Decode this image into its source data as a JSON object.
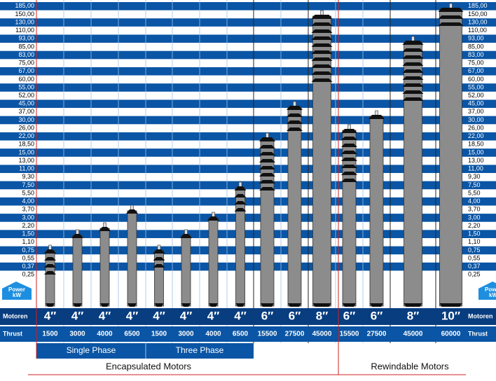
{
  "scale": [
    "185,00",
    "150,00",
    "130,00",
    "110,00",
    "93,00",
    "85,00",
    "83,00",
    "75,00",
    "67,00",
    "60,00",
    "55,00",
    "52,00",
    "45,00",
    "37,00",
    "30,00",
    "26,00",
    "22,00",
    "18,50",
    "15,00",
    "13,00",
    "11,00",
    "9,30",
    "7,50",
    "5,50",
    "4,00",
    "3,70",
    "3,00",
    "2,20",
    "1,50",
    "1,10",
    "0,75",
    "0,55",
    "0,37",
    "0,25"
  ],
  "badge": {
    "line1": "Power",
    "line2": "kW"
  },
  "rows": {
    "size": "Motoren",
    "thrust": "Thrust"
  },
  "columns": [
    {
      "size": "4″",
      "thrust": 1500
    },
    {
      "size": "4″",
      "thrust": 3000
    },
    {
      "size": "4″",
      "thrust": 4000
    },
    {
      "size": "4″",
      "thrust": 6500
    },
    {
      "size": "4″",
      "thrust": 1500
    },
    {
      "size": "4″",
      "thrust": 3000
    },
    {
      "size": "4″",
      "thrust": 4000
    },
    {
      "size": "4″",
      "thrust": 6500
    },
    {
      "size": "6″",
      "thrust": 15500
    },
    {
      "size": "6″",
      "thrust": 27500
    },
    {
      "size": "8″",
      "thrust": 45000
    },
    {
      "size": "6″",
      "thrust": 15500
    },
    {
      "size": "6″",
      "thrust": 27500
    },
    {
      "size": "8″",
      "thrust": 45000
    },
    {
      "size": "10″",
      "thrust": 60000
    }
  ],
  "phases": [
    "Single Phase",
    "Three Phase"
  ],
  "groups": [
    "Encapsulated Motors",
    "Rewindable Motors"
  ]
}
